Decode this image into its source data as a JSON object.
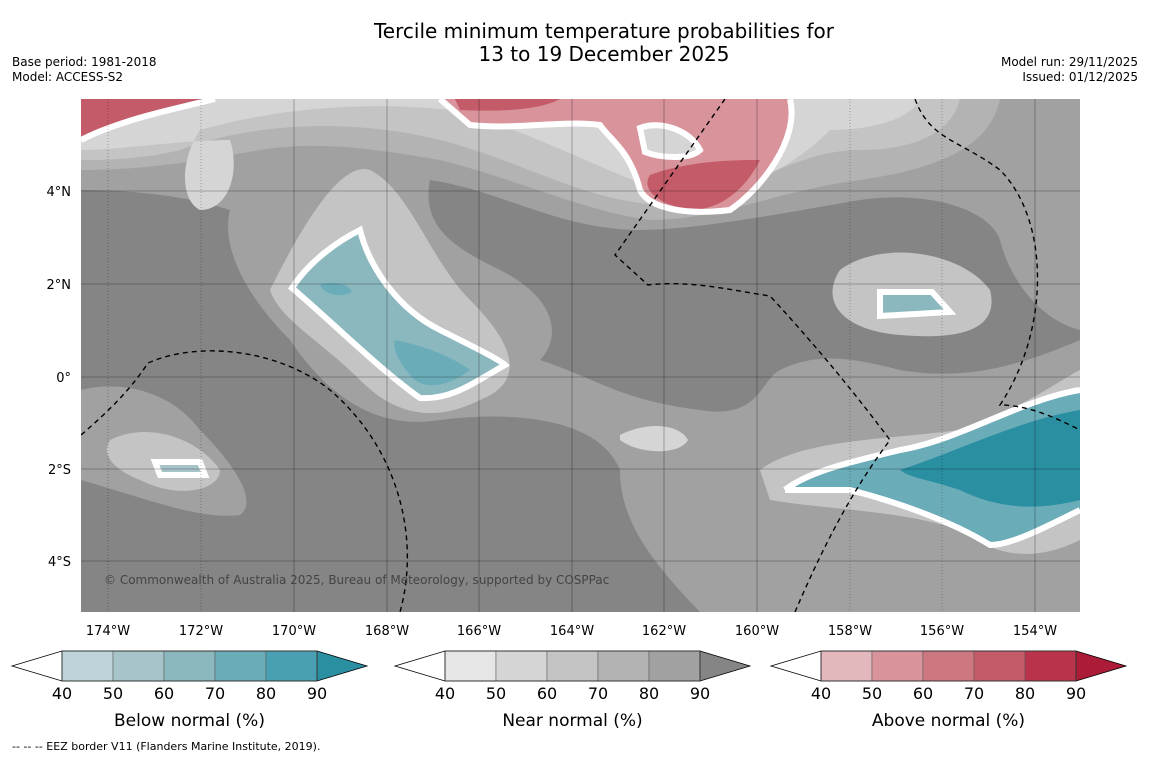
{
  "title": {
    "line1": "Tercile minimum temperature probabilities for",
    "line2": "13 to 19 December 2025"
  },
  "meta_left": {
    "base_period": "Base period: 1981-2018",
    "model": "Model: ACCESS-S2"
  },
  "meta_right": {
    "model_run": "Model run: 29/11/2025",
    "issued": "Issued: 01/12/2025"
  },
  "map": {
    "lon_ticks": [
      "174°W",
      "172°W",
      "170°W",
      "168°W",
      "166°W",
      "164°W",
      "162°W",
      "160°W",
      "158°W",
      "156°W",
      "154°W"
    ],
    "lat_ticks": [
      "4°N",
      "2°N",
      "0°",
      "2°S",
      "4°S"
    ],
    "copyright": "© Commonwealth of Australia 2025, Bureau of Meteorology, supported by COSPPac"
  },
  "colorbars": [
    {
      "label": "Below normal (%)",
      "ticks": [
        "40",
        "50",
        "60",
        "70",
        "80",
        "90"
      ],
      "colors": [
        "#ffffff",
        "#bfd4da",
        "#a6c4c9",
        "#8bb8bf",
        "#6aacb8",
        "#48a0b2",
        "#2b8fa2"
      ]
    },
    {
      "label": "Near normal (%)",
      "ticks": [
        "40",
        "50",
        "60",
        "70",
        "80",
        "90"
      ],
      "colors": [
        "#ffffff",
        "#e6e6e6",
        "#d5d5d5",
        "#c4c4c4",
        "#b3b3b3",
        "#a1a1a1",
        "#858585"
      ]
    },
    {
      "label": "Above normal (%)",
      "ticks": [
        "40",
        "50",
        "60",
        "70",
        "80",
        "90"
      ],
      "colors": [
        "#ffffff",
        "#e2b8bd",
        "#d8939b",
        "#cd7780",
        "#c45b69",
        "#b9344b",
        "#ac1b38"
      ]
    }
  ],
  "footer": "--  --  -- EEZ border V11 (Flanders Marine Institute, 2019)."
}
